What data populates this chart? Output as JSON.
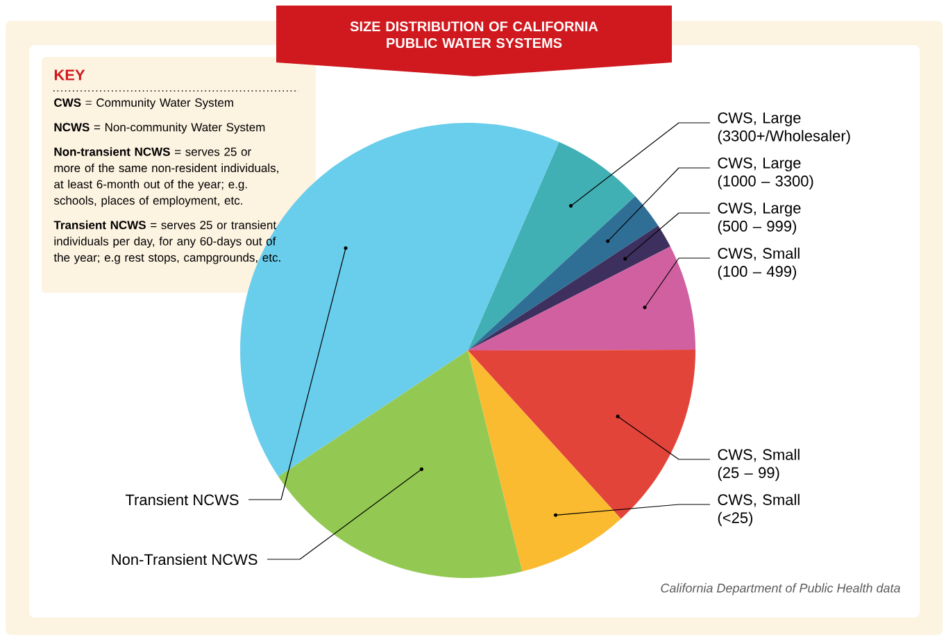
{
  "chart_data": {
    "type": "pie",
    "title": "SIZE DISTRIBUTION OF CALIFORNIA PUBLIC WATER SYSTEMS",
    "categories": [
      "CWS, Large (3300+/Wholesaler)",
      "CWS, Large (1000 – 3300)",
      "CWS, Large (500 – 999)",
      "CWS, Small (100 – 499)",
      "CWS, Small (25 – 99)",
      "CWS, Small (<25)",
      "Non-Transient NCWS",
      "Transient NCWS"
    ],
    "values": [
      6.6,
      2.6,
      1.7,
      7.5,
      13.3,
      7.9,
      19.5,
      40.9
    ],
    "colors": [
      "#41b0b5",
      "#2f6f96",
      "#3d2f5e",
      "#d060a0",
      "#e3443a",
      "#fbbb30",
      "#93c852",
      "#69cdec"
    ],
    "annotations": [
      "KEY",
      "**CWS** = Community Water System",
      "**NCWS** = Non-community Water System",
      "**Non-transient NCWS** = serves 25 or more of the same non-resident individuals, at least 6-month out of the year; e.g. schools, places of employment, etc.",
      "**Transient NCWS** = serves 25 or transient individuals per day, for any 60-days out of the year; e.g rest stops, campgrounds, etc.",
      "California Department of Public Health data"
    ]
  }
}
